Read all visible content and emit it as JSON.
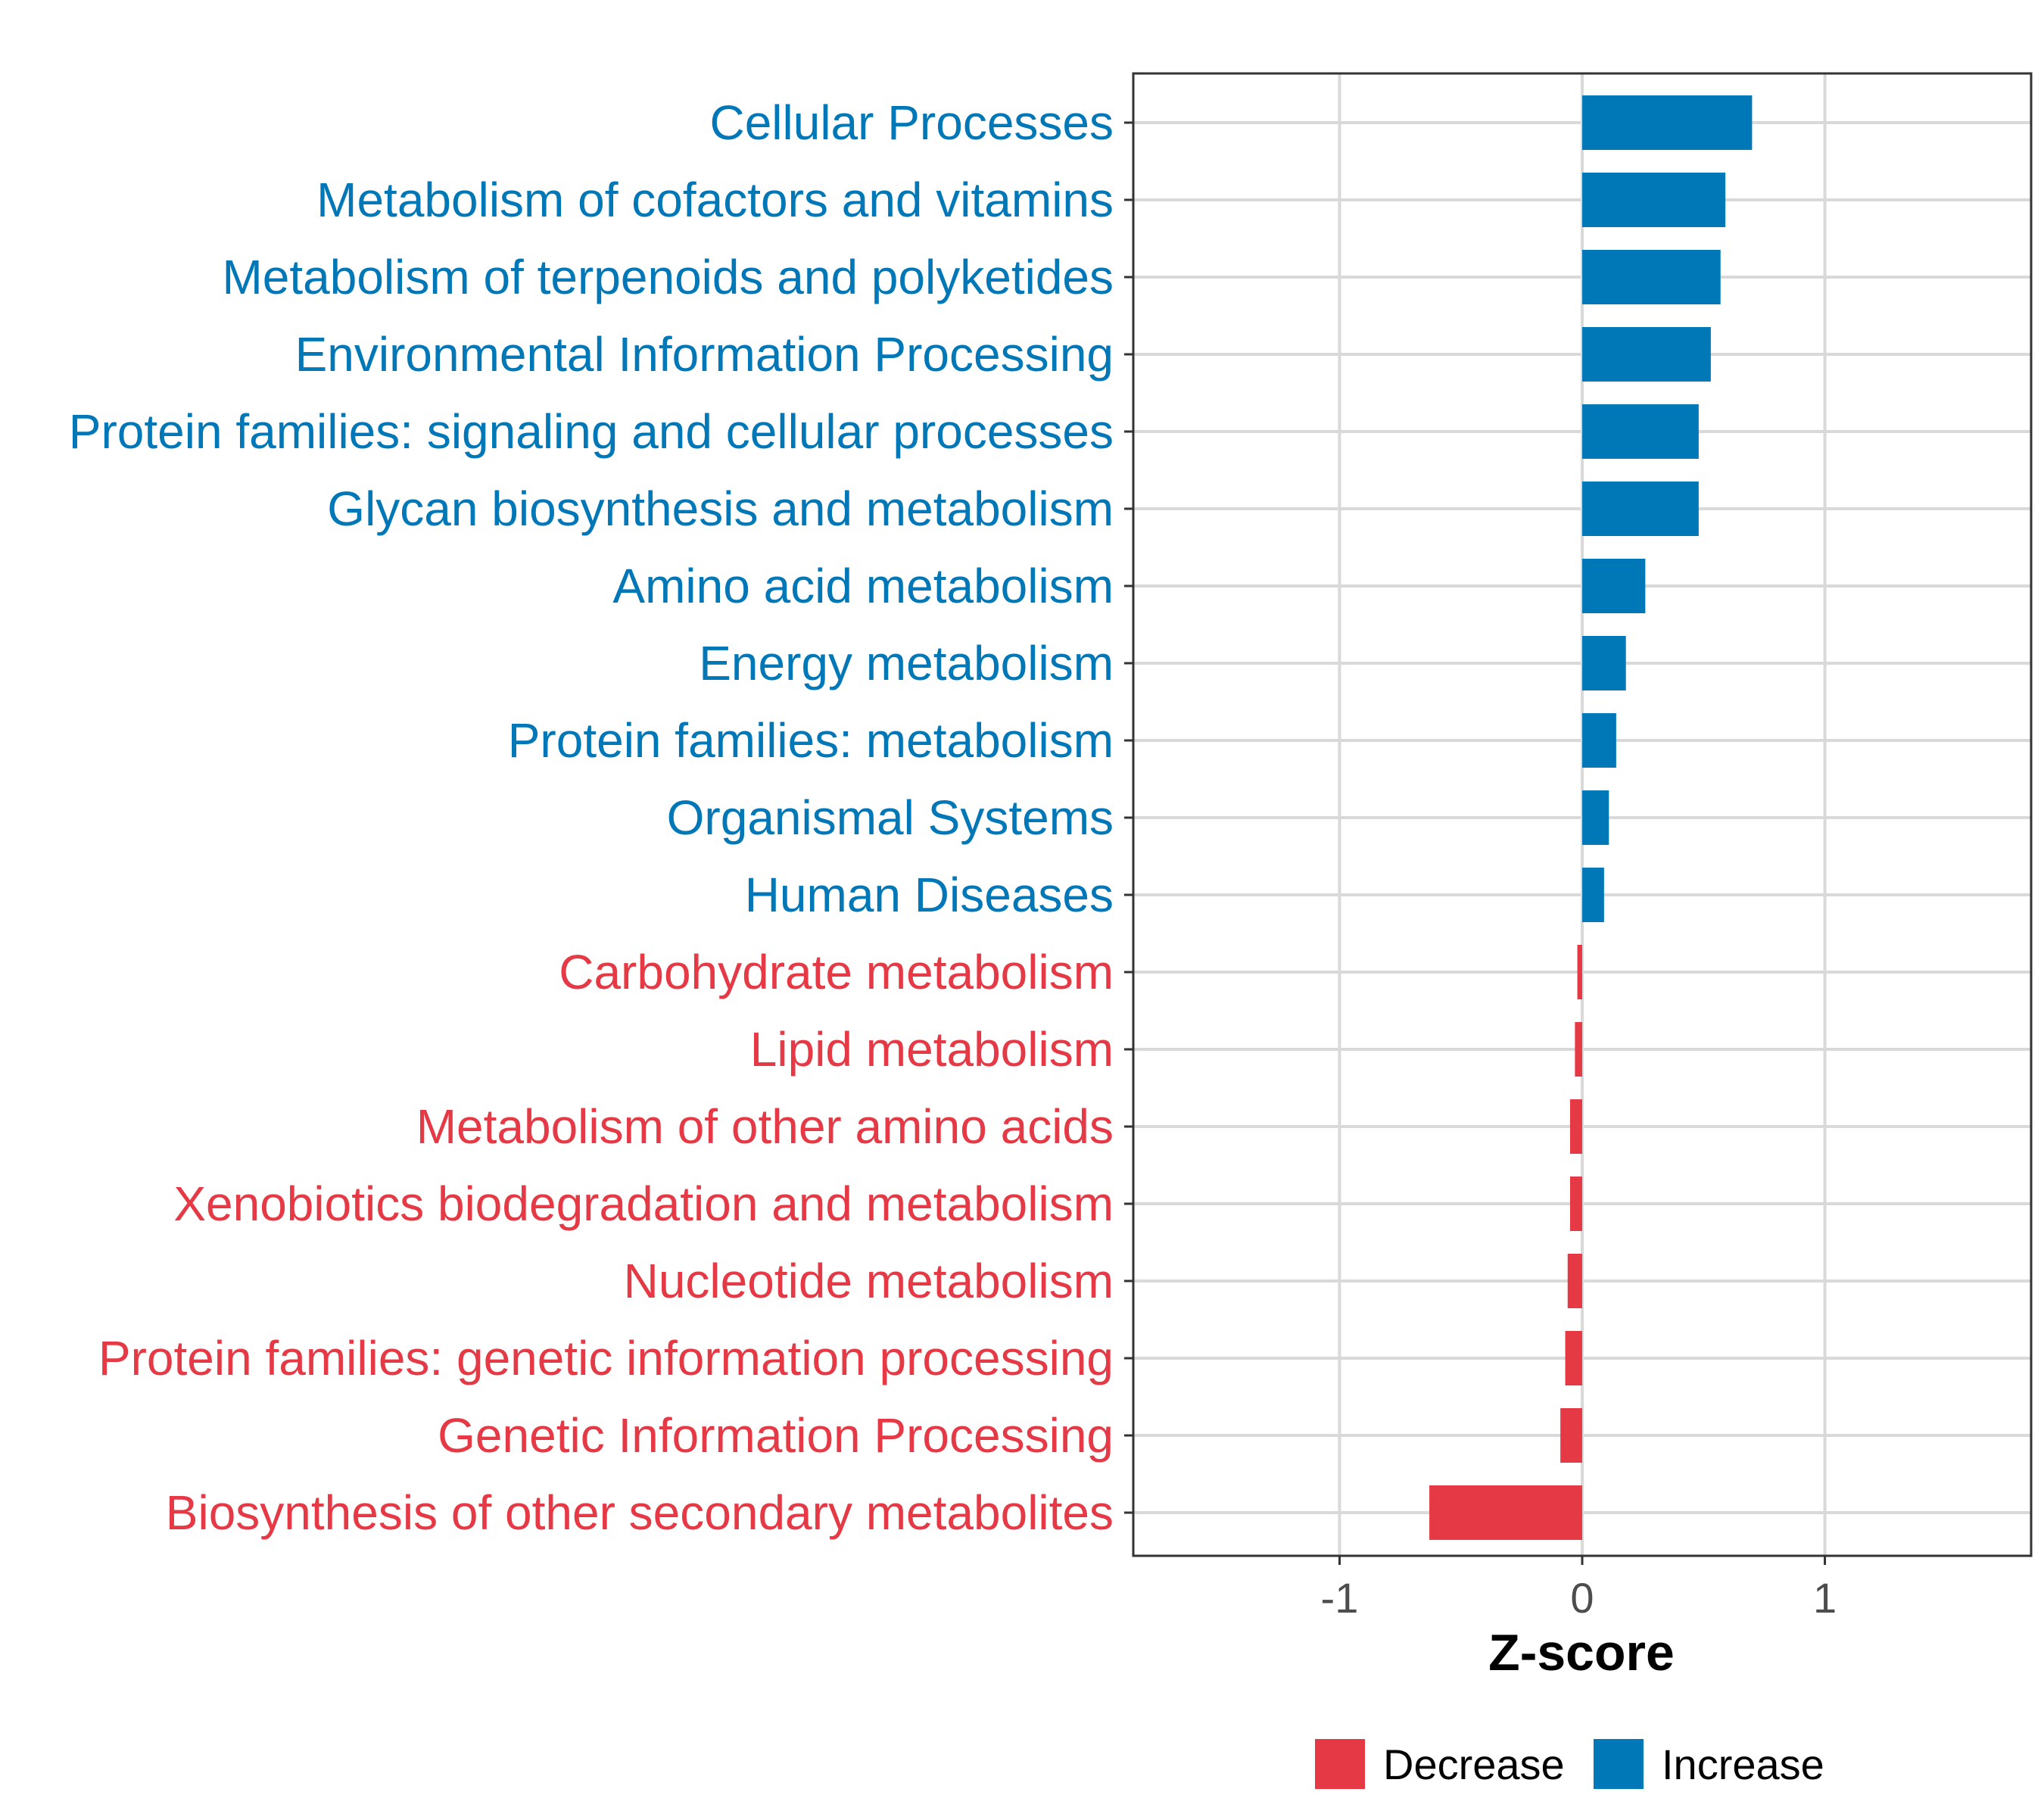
{
  "chart_data": {
    "type": "bar",
    "orientation": "horizontal",
    "xlabel": "Z-score",
    "xlim": [
      -1.85,
      1.85
    ],
    "x_ticks": [
      -1,
      0,
      1
    ],
    "x_tick_labels": [
      "-1",
      "0",
      "1"
    ],
    "grid": true,
    "legend_position": "bottom",
    "colors": {
      "Decrease": "#e63946",
      "Increase": "#0077b6"
    },
    "categories": [
      "Cellular Processes",
      "Metabolism of cofactors and vitamins",
      "Metabolism of terpenoids and polyketides",
      "Environmental Information Processing",
      "Protein families: signaling and cellular processes",
      "Glycan biosynthesis and metabolism",
      "Amino acid metabolism",
      "Energy metabolism",
      "Protein families: metabolism",
      "Organismal Systems",
      "Human Diseases",
      "Carbohydrate metabolism",
      "Lipid metabolism",
      "Metabolism of other amino acids",
      "Xenobiotics biodegradation and metabolism",
      "Nucleotide metabolism",
      "Protein families: genetic information processing",
      "Genetic Information Processing",
      "Biosynthesis of other secondary metabolites"
    ],
    "values": [
      0.7,
      0.59,
      0.57,
      0.53,
      0.48,
      0.48,
      0.26,
      0.18,
      0.14,
      0.11,
      0.09,
      -0.02,
      -0.03,
      -0.05,
      -0.05,
      -0.06,
      -0.07,
      -0.09,
      -0.63
    ],
    "groups": [
      "Increase",
      "Increase",
      "Increase",
      "Increase",
      "Increase",
      "Increase",
      "Increase",
      "Increase",
      "Increase",
      "Increase",
      "Increase",
      "Decrease",
      "Decrease",
      "Decrease",
      "Decrease",
      "Decrease",
      "Decrease",
      "Decrease",
      "Decrease"
    ],
    "legend": [
      {
        "label": "Decrease",
        "color": "#e63946"
      },
      {
        "label": "Increase",
        "color": "#0077b6"
      }
    ]
  }
}
